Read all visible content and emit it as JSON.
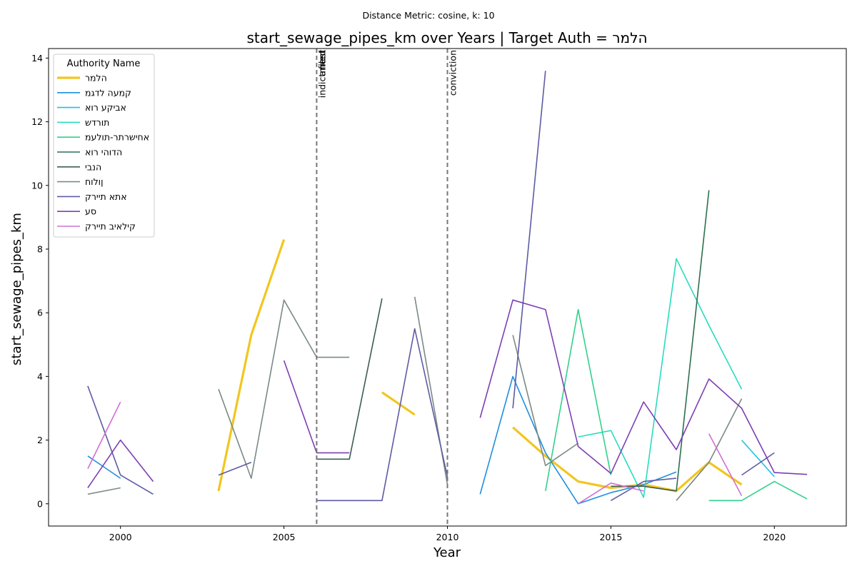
{
  "chart_data": {
    "type": "line",
    "suptitle": "Distance Metric: cosine, k: 10",
    "title": "start_sewage_pipes_km over Years | Target Auth = הלמר",
    "xlabel": "Year",
    "ylabel": "start_sewage_pipes_km",
    "xlim": [
      1997.8,
      2022.2
    ],
    "ylim": [
      -0.7,
      14.3
    ],
    "xticks": [
      2000,
      2005,
      2010,
      2015,
      2020
    ],
    "yticks": [
      0,
      2,
      4,
      6,
      8,
      10,
      12,
      14
    ],
    "grid": false,
    "legend": {
      "title": "Authority Name",
      "placement": "upper left"
    },
    "events": [
      {
        "x": 2006,
        "labels": [
          "indictment",
          "arrest",
          "filed"
        ]
      },
      {
        "x": 2010,
        "labels": [
          "conviction"
        ]
      }
    ],
    "series": [
      {
        "name": "הלמר",
        "color": "#f2c61f",
        "width": 3.2,
        "points": [
          [
            2003,
            0.4
          ],
          [
            2004,
            5.3
          ],
          [
            2005,
            8.3
          ],
          [
            null,
            null
          ],
          [
            2008,
            3.5
          ],
          [
            2009,
            2.8
          ],
          [
            null,
            null
          ],
          [
            2012,
            2.4
          ],
          [
            2013,
            1.5
          ],
          [
            2014,
            0.7
          ],
          [
            2015,
            0.5
          ],
          [
            2016,
            0.6
          ],
          [
            2017,
            0.4
          ],
          [
            2018,
            1.3
          ],
          [
            2019,
            0.6
          ]
        ]
      },
      {
        "name": "קמעה לדגמ",
        "color": "#1f8fe0",
        "width": 1.6,
        "points": [
          [
            1999,
            1.5
          ],
          [
            2000,
            0.8
          ],
          [
            null,
            null
          ],
          [
            2011,
            0.3
          ],
          [
            2012,
            4.0
          ],
          [
            2013,
            1.6
          ],
          [
            2014,
            0.0
          ],
          [
            2015,
            0.35
          ],
          [
            2016,
            0.6
          ],
          [
            2017,
            1.0
          ]
        ]
      },
      {
        "name": "אביקע רוא",
        "color": "#1ec2e6",
        "width": 1.6,
        "points": [
          [
            2019,
            2.0
          ],
          [
            2020,
            0.85
          ]
        ]
      },
      {
        "name": "תורדש",
        "color": "#28dcc0",
        "width": 1.6,
        "points": [
          [
            2014,
            2.1
          ],
          [
            2015,
            2.3
          ],
          [
            2016,
            0.2
          ],
          [
            2017,
            7.7
          ],
          [
            2018,
            5.6
          ],
          [
            2019,
            3.6
          ]
        ]
      },
      {
        "name": "אחישרתר-תולעמ",
        "color": "#32d08e",
        "width": 1.6,
        "points": [
          [
            2013,
            0.4
          ],
          [
            2014,
            6.1
          ],
          [
            2015,
            0.9
          ],
          [
            null,
            null
          ],
          [
            2018,
            0.1
          ],
          [
            2019,
            0.1
          ],
          [
            2020,
            0.7
          ],
          [
            2021,
            0.15
          ]
        ]
      },
      {
        "name": "הדוהי רוא",
        "color": "#2d7050",
        "width": 1.6,
        "points": [
          [
            2017,
            0.4
          ],
          [
            2018,
            9.85
          ]
        ]
      },
      {
        "name": "הנבי",
        "color": "#3d5c52",
        "width": 1.6,
        "points": [
          [
            2006,
            1.4
          ],
          [
            2007,
            1.4
          ],
          [
            2008,
            6.45
          ],
          [
            null,
            null
          ],
          [
            2015,
            0.55
          ],
          [
            2016,
            0.55
          ],
          [
            2017,
            0.4
          ]
        ]
      },
      {
        "name": "ןולוח",
        "color": "#7a8a86",
        "width": 1.6,
        "points": [
          [
            1999,
            0.3
          ],
          [
            2000,
            0.5
          ],
          [
            null,
            null
          ],
          [
            2003,
            3.6
          ],
          [
            2004,
            0.8
          ],
          [
            2005,
            6.4
          ],
          [
            2006,
            4.6
          ],
          [
            2007,
            4.6
          ],
          [
            null,
            null
          ],
          [
            2009,
            6.5
          ],
          [
            2010,
            0.6
          ],
          [
            null,
            null
          ],
          [
            2012,
            5.3
          ],
          [
            2013,
            1.2
          ],
          [
            2014,
            1.9
          ],
          [
            null,
            null
          ],
          [
            2017,
            0.1
          ],
          [
            2018,
            1.3
          ],
          [
            2019,
            3.3
          ]
        ]
      },
      {
        "name": "אתא תיירק",
        "color": "#5e5ba2",
        "width": 1.6,
        "points": [
          [
            1999,
            3.7
          ],
          [
            2000,
            0.9
          ],
          [
            2001,
            0.3
          ],
          [
            null,
            null
          ],
          [
            2003,
            0.9
          ],
          [
            2004,
            1.3
          ],
          [
            null,
            null
          ],
          [
            2006,
            0.1
          ],
          [
            2007,
            0.1
          ],
          [
            2008,
            0.1
          ],
          [
            2009,
            5.5
          ],
          [
            2010,
            0.85
          ],
          [
            null,
            null
          ],
          [
            2012,
            3.0
          ],
          [
            2013,
            13.6
          ],
          [
            null,
            null
          ],
          [
            2015,
            0.1
          ],
          [
            2016,
            0.7
          ],
          [
            2017,
            0.8
          ],
          [
            null,
            null
          ],
          [
            2019,
            0.9
          ],
          [
            2020,
            1.6
          ]
        ]
      },
      {
        "name": "סע",
        "color": "#7d3fb2",
        "width": 1.6,
        "points": [
          [
            1999,
            0.5
          ],
          [
            2000,
            2.0
          ],
          [
            2001,
            0.7
          ],
          [
            null,
            null
          ],
          [
            2005,
            4.5
          ],
          [
            2006,
            1.6
          ],
          [
            2007,
            1.6
          ],
          [
            null,
            null
          ],
          [
            2011,
            2.7
          ],
          [
            2012,
            6.4
          ],
          [
            2013,
            6.1
          ],
          [
            2014,
            1.8
          ],
          [
            2015,
            0.95
          ],
          [
            2016,
            3.2
          ],
          [
            2017,
            1.7
          ],
          [
            2018,
            3.92
          ],
          [
            2019,
            3.0
          ],
          [
            2020,
            0.98
          ],
          [
            2021,
            0.92
          ]
        ]
      },
      {
        "name": "קילאיב תיירק",
        "color": "#d070d0",
        "width": 1.6,
        "points": [
          [
            1999,
            1.1
          ],
          [
            2000,
            3.2
          ],
          [
            null,
            null
          ],
          [
            2014,
            0.0
          ],
          [
            2015,
            0.65
          ],
          [
            2016,
            0.4
          ],
          [
            null,
            null
          ],
          [
            2018,
            2.2
          ],
          [
            2019,
            0.25
          ]
        ]
      }
    ]
  }
}
